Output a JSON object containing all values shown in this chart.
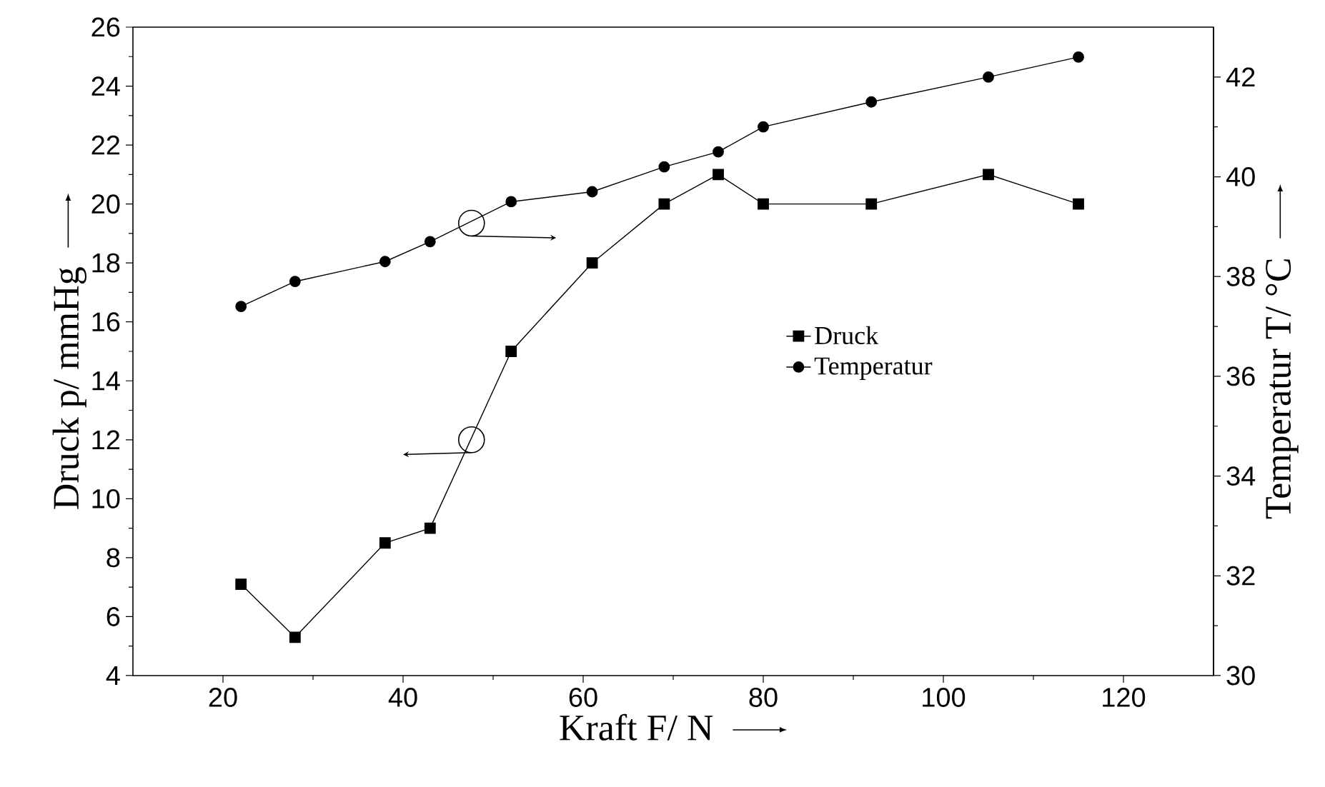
{
  "chart_data": {
    "type": "line",
    "xlabel": "Kraft F/ N",
    "ylabel": "Druck p/ mmHg",
    "y2label": "Temperatur T/ °C",
    "xlim": [
      10,
      130
    ],
    "xticks": [
      20,
      40,
      60,
      80,
      100,
      120
    ],
    "ylim": [
      4,
      26
    ],
    "yticks": [
      4,
      6,
      8,
      10,
      12,
      14,
      16,
      18,
      20,
      22,
      24,
      26
    ],
    "y2lim": [
      30,
      43
    ],
    "y2ticks": [
      30,
      32,
      34,
      36,
      38,
      40,
      42
    ],
    "legend": "right",
    "line_style": "solid",
    "series": [
      {
        "name": "Druck",
        "color": "#000000",
        "marker": "square",
        "x": [
          22,
          28,
          38,
          43,
          52,
          61,
          69,
          75,
          80,
          92,
          105,
          115
        ],
        "values": [
          7.1,
          5.3,
          8.5,
          9,
          15,
          18,
          20,
          21,
          20,
          20,
          21,
          20
        ]
      },
      {
        "name": "Temperatur",
        "color": "#000000",
        "marker": "circle",
        "axis": "y2",
        "x": [
          22,
          28,
          38,
          43,
          52,
          61,
          69,
          75,
          80,
          92,
          105,
          115
        ],
        "values": [
          37.4,
          37.9,
          38.3,
          38.7,
          39.5,
          39.7,
          40.2,
          40.5,
          41.0,
          41.5,
          42.0,
          42.4
        ]
      }
    ]
  }
}
